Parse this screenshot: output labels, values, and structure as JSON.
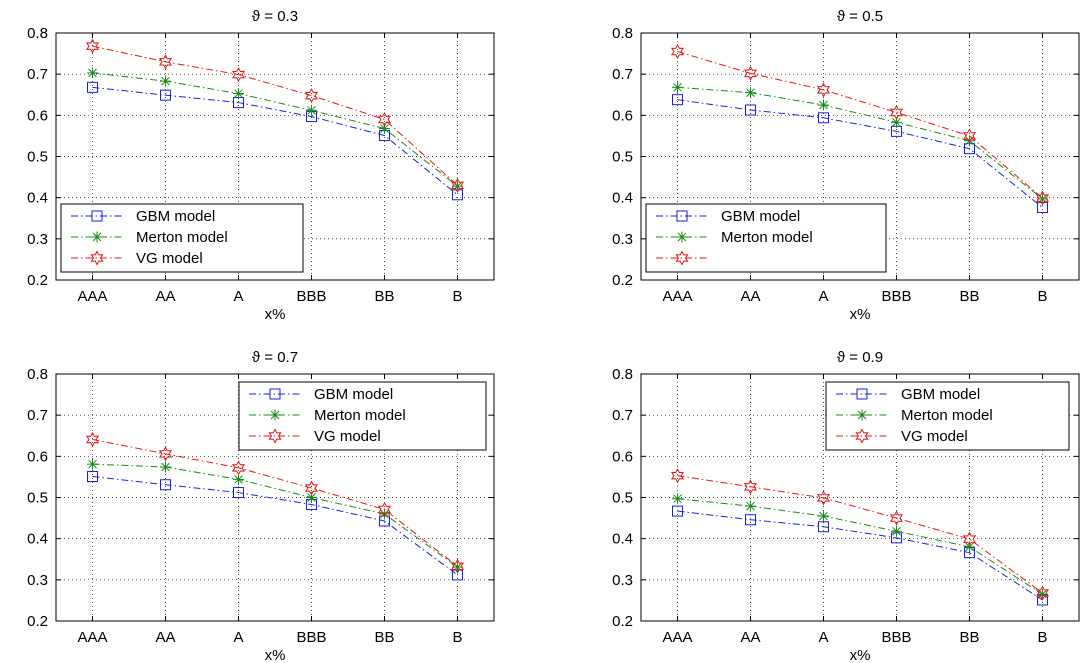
{
  "figure": {
    "colors": {
      "GBM": "#1f1fd6",
      "Merton": "#1a8a1a",
      "VG": "#e01a1a"
    },
    "markers": {
      "GBM": "square",
      "Merton": "asterisk",
      "VG": "hexagram"
    },
    "line_styles": {
      "GBM": "dash-dot",
      "Merton": "dash-dot",
      "VG": "dash-dot"
    }
  },
  "chart_data": [
    {
      "type": "line",
      "title": "ϑ = 0.3",
      "xlabel": "x%",
      "ylabel": "",
      "categories": [
        "AAA",
        "AA",
        "A",
        "BBB",
        "BB",
        "B"
      ],
      "ylim": [
        0.2,
        0.8
      ],
      "yticks": [
        "0.2",
        "0.3",
        "0.4",
        "0.5",
        "0.6",
        "0.7",
        "0.8"
      ],
      "grid": true,
      "legend_position": "bottom-left",
      "series": [
        {
          "name": "GBM model",
          "values": [
            0.668,
            0.649,
            0.631,
            0.597,
            0.551,
            0.407
          ]
        },
        {
          "name": "Merton model",
          "values": [
            0.703,
            0.683,
            0.653,
            0.612,
            0.568,
            0.428
          ]
        },
        {
          "name": "VG model",
          "values": [
            0.768,
            0.73,
            0.699,
            0.648,
            0.59,
            0.43
          ]
        }
      ]
    },
    {
      "type": "line",
      "title": "ϑ = 0.5",
      "xlabel": "x%",
      "ylabel": "",
      "categories": [
        "AAA",
        "AA",
        "A",
        "BBB",
        "BB",
        "B"
      ],
      "ylim": [
        0.2,
        0.8
      ],
      "yticks": [
        "0.2",
        "0.3",
        "0.4",
        "0.5",
        "0.6",
        "0.7",
        "0.8"
      ],
      "grid": true,
      "legend_position": "bottom-left",
      "series": [
        {
          "name": "GBM model",
          "values": [
            0.638,
            0.613,
            0.594,
            0.561,
            0.519,
            0.376
          ]
        },
        {
          "name": "Merton model",
          "values": [
            0.668,
            0.655,
            0.625,
            0.583,
            0.538,
            0.397
          ]
        },
        {
          "name": "",
          "values": [
            0.755,
            0.702,
            0.662,
            0.607,
            0.55,
            0.399
          ]
        }
      ]
    },
    {
      "type": "line",
      "title": "ϑ = 0.7",
      "xlabel": "x%",
      "ylabel": "",
      "categories": [
        "AAA",
        "AA",
        "A",
        "BBB",
        "BB",
        "B"
      ],
      "ylim": [
        0.2,
        0.8
      ],
      "yticks": [
        "0.2",
        "0.3",
        "0.4",
        "0.5",
        "0.6",
        "0.7",
        "0.8"
      ],
      "grid": true,
      "legend_position": "top-right",
      "series": [
        {
          "name": "GBM model",
          "values": [
            0.551,
            0.531,
            0.512,
            0.483,
            0.443,
            0.312
          ]
        },
        {
          "name": "Merton model",
          "values": [
            0.581,
            0.574,
            0.544,
            0.5,
            0.46,
            0.331
          ]
        },
        {
          "name": "VG model",
          "values": [
            0.641,
            0.606,
            0.572,
            0.523,
            0.471,
            0.333
          ]
        }
      ]
    },
    {
      "type": "line",
      "title": "ϑ = 0.9",
      "xlabel": "x%",
      "ylabel": "",
      "categories": [
        "AAA",
        "AA",
        "A",
        "BBB",
        "BB",
        "B"
      ],
      "ylim": [
        0.2,
        0.8
      ],
      "yticks": [
        "0.2",
        "0.3",
        "0.4",
        "0.5",
        "0.6",
        "0.7",
        "0.8"
      ],
      "grid": true,
      "legend_position": "top-right",
      "series": [
        {
          "name": "GBM model",
          "values": [
            0.467,
            0.446,
            0.429,
            0.402,
            0.366,
            0.251
          ]
        },
        {
          "name": "Merton model",
          "values": [
            0.497,
            0.479,
            0.455,
            0.418,
            0.38,
            0.265
          ]
        },
        {
          "name": "VG model",
          "values": [
            0.553,
            0.526,
            0.499,
            0.45,
            0.399,
            0.268
          ]
        }
      ]
    }
  ]
}
